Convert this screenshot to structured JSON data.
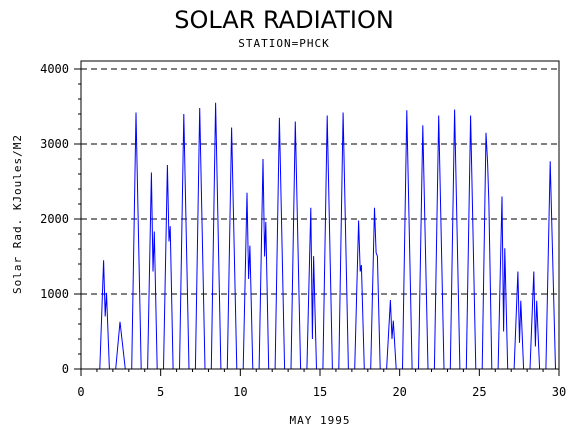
{
  "chart_data": {
    "type": "line",
    "title": "SOLAR RADIATION",
    "subtitle": "STATION=PHCK",
    "xlabel": "MAY 1995",
    "ylabel": "Solar Rad. KJoules/M2",
    "xlim": [
      0,
      30
    ],
    "ylim": [
      0,
      4000
    ],
    "x_ticks": [
      0,
      5,
      10,
      15,
      20,
      25,
      30
    ],
    "y_ticks": [
      0,
      1000,
      2000,
      3000,
      4000
    ],
    "grid": "horizontal dashed",
    "series": [
      {
        "color": "#0000ff",
        "days": [
          {
            "day": 1,
            "peak": 1450,
            "dip": 700
          },
          {
            "day": 2,
            "peak": 630
          },
          {
            "day": 3,
            "peak": 3420
          },
          {
            "day": 4,
            "peak": 2620,
            "dip": 1300
          },
          {
            "day": 5,
            "peak": 2720,
            "dip": 1700
          },
          {
            "day": 6,
            "peak": 3400
          },
          {
            "day": 7,
            "peak": 3480
          },
          {
            "day": 8,
            "peak": 3550
          },
          {
            "day": 9,
            "peak": 3220
          },
          {
            "day": 10,
            "peak": 2350,
            "dip": 1200
          },
          {
            "day": 11,
            "peak": 2800,
            "dip": 1500
          },
          {
            "day": 12,
            "peak": 3350
          },
          {
            "day": 13,
            "peak": 3300
          },
          {
            "day": 14,
            "peak": 2150,
            "dip": 400
          },
          {
            "day": 15,
            "peak": 3380
          },
          {
            "day": 16,
            "peak": 3420
          },
          {
            "day": 17,
            "peak": 1980,
            "dip": 1300
          },
          {
            "day": 18,
            "peak": 2150,
            "dip": 1550
          },
          {
            "day": 19,
            "peak": 920,
            "dip": 400
          },
          {
            "day": 20,
            "peak": 3450
          },
          {
            "day": 21,
            "peak": 3250
          },
          {
            "day": 22,
            "peak": 3380
          },
          {
            "day": 23,
            "peak": 3460
          },
          {
            "day": 24,
            "peak": 3380
          },
          {
            "day": 25,
            "peak": 3150,
            "dip": 2750
          },
          {
            "day": 26,
            "peak": 2300,
            "dip": 500
          },
          {
            "day": 27,
            "peak": 1300,
            "dip": 350
          },
          {
            "day": 28,
            "peak": 1300,
            "dip": 300
          },
          {
            "day": 29,
            "peak": 2770
          }
        ]
      }
    ]
  }
}
